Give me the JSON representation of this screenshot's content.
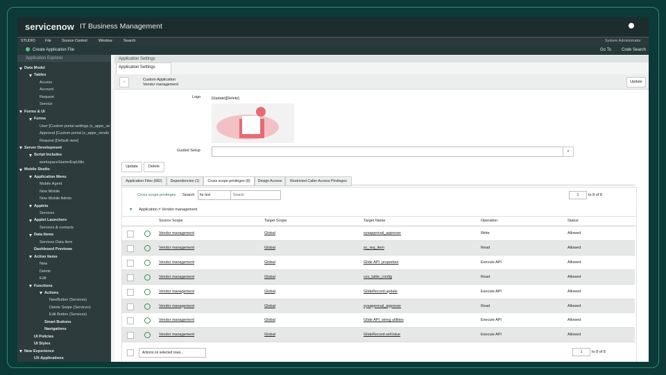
{
  "header": {
    "brand": "servicenow",
    "product": "IT Business Management"
  },
  "menu": {
    "items": [
      "STUDIO",
      "File",
      "Source Control",
      "Window",
      "Search"
    ],
    "user": "System Administrator"
  },
  "toolbar": {
    "create": "Create Application File",
    "go_to": "Go To",
    "code_search": "Code Search"
  },
  "sidebar": {
    "title": "Application Explorer",
    "tree": [
      {
        "label": "Data Model",
        "children": [
          {
            "label": "Tables",
            "children": [
              {
                "label": "Access"
              },
              {
                "label": "Account"
              },
              {
                "label": "Request"
              },
              {
                "label": "Service"
              }
            ]
          }
        ]
      },
      {
        "label": "Forms & UI",
        "children": [
          {
            "label": "Forms",
            "children": [
              {
                "label": "User [Custom portal settings (x_appe_ve"
              },
              {
                "label": "Approval [Custom portal (x_appe_vendo"
              },
              {
                "label": "Request [Default view]"
              }
            ]
          }
        ]
      },
      {
        "label": "Server Development",
        "children": [
          {
            "label": "Script Includes",
            "children": [
              {
                "label": "workspaceStarterExpUtils"
              }
            ]
          }
        ]
      },
      {
        "label": "Mobile Studio",
        "children": [
          {
            "label": "Application Menu",
            "children": [
              {
                "label": "Mobile Agent"
              },
              {
                "label": "Now Mobile"
              },
              {
                "label": "Now Mobile Admin"
              }
            ]
          },
          {
            "label": "Applets",
            "children": [
              {
                "label": "Services"
              }
            ]
          },
          {
            "label": "Applet Launchers",
            "children": [
              {
                "label": "Services & contacts"
              }
            ]
          },
          {
            "label": "Data Items",
            "children": [
              {
                "label": "Services Data Item"
              }
            ]
          },
          {
            "label": "Dashboard Previews",
            "children": []
          },
          {
            "label": "Action Items",
            "children": [
              {
                "label": "New"
              },
              {
                "label": "Delete"
              },
              {
                "label": "Edit"
              }
            ]
          },
          {
            "label": "Functions",
            "children": [
              {
                "label": "Actions",
                "children": [
                  {
                    "label": "NewButton (Services)"
                  },
                  {
                    "label": "Delete Swipe (Services)"
                  },
                  {
                    "label": "Edit Button (Services)"
                  }
                ]
              },
              {
                "label": "Smart Buttons",
                "children": []
              },
              {
                "label": "Navigations",
                "children": []
              }
            ]
          },
          {
            "label": "UI Policies",
            "children": []
          },
          {
            "label": "UI Styles",
            "children": []
          }
        ]
      },
      {
        "label": "New Experience",
        "children": [
          {
            "label": "UX Applications",
            "children": []
          }
        ]
      }
    ]
  },
  "tab": {
    "section": "Application Settings",
    "title": "Application Settings"
  },
  "form": {
    "type_label": "Custom Application",
    "record": "Vendor management",
    "update_button": "Update",
    "logo_label": "Logo",
    "logo_links": "[Update][Delete]",
    "guided_label": "Guided Setup",
    "buttons": [
      "Update",
      "Delete"
    ]
  },
  "related_tabs": [
    "Application Files (682)",
    "Dependencies (1)",
    "Cross scope privileges (8)",
    "Design Access",
    "Restricted Caller Access Privileges"
  ],
  "list": {
    "title": "Cross scope privileges",
    "search_label": "Search",
    "search_field": "for text",
    "search_placeholder": "Search",
    "page": "1",
    "range": "to 8 of 8",
    "filter": "Application = Vendor management",
    "columns": [
      "Source Scope",
      "Target Scope",
      "Target Name",
      "Operation",
      "Status"
    ],
    "rows": [
      [
        "Vendor management",
        "Global",
        "sysapproval_approver",
        "Write",
        "Allowed"
      ],
      [
        "Vendor management",
        "Global",
        "sc_req_item",
        "Read",
        "Allowed"
      ],
      [
        "Vendor management",
        "Global",
        "Glide API: properties",
        "Execute API",
        "Allowed"
      ],
      [
        "Vendor management",
        "Global",
        "cxs_table_config",
        "Read",
        "Allowed"
      ],
      [
        "Vendor management",
        "Global",
        "GlideRecord.update",
        "Execute API",
        "Allowed"
      ],
      [
        "Vendor management",
        "Global",
        "sysapproval_approver",
        "Read",
        "Allowed"
      ],
      [
        "Vendor management",
        "Global",
        "Glide API: string utilities",
        "Execute API",
        "Allowed"
      ],
      [
        "Vendor management",
        "Global",
        "GlideRecord.setValue",
        "Execute API",
        "Allowed"
      ]
    ],
    "actions": "Actions on selected rows...",
    "footer_page": "1",
    "footer_range": "to 8 of 8"
  }
}
